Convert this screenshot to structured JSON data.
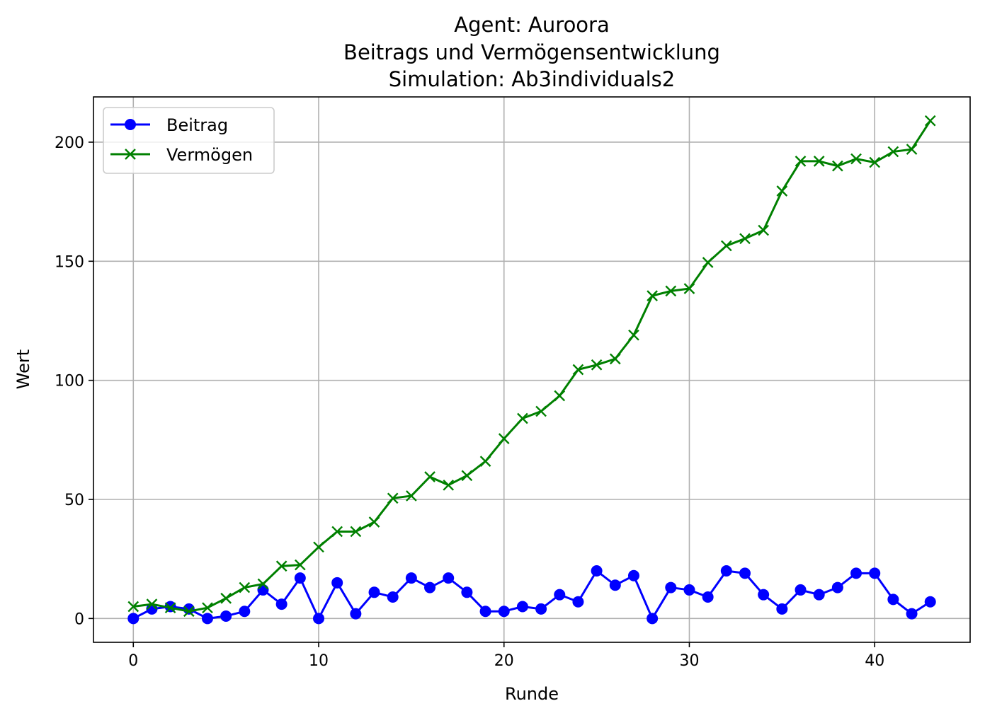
{
  "chart_data": {
    "type": "line",
    "title": [
      "Agent: Auroora",
      "Beitrags und Vermögensentwicklung",
      "Simulation: Ab3individuals2"
    ],
    "xlabel": "Runde",
    "ylabel": "Wert",
    "xlim": [
      -2.15,
      45.15
    ],
    "ylim": [
      -10,
      219
    ],
    "xticks": [
      0,
      10,
      20,
      30,
      40
    ],
    "yticks": [
      0,
      50,
      100,
      150,
      200
    ],
    "grid": true,
    "legend_position": "upper left",
    "x": [
      0,
      1,
      2,
      3,
      4,
      5,
      6,
      7,
      8,
      9,
      10,
      11,
      12,
      13,
      14,
      15,
      16,
      17,
      18,
      19,
      20,
      21,
      22,
      23,
      24,
      25,
      26,
      27,
      28,
      29,
      30,
      31,
      32,
      33,
      34,
      35,
      36,
      37,
      38,
      39,
      40,
      41,
      42,
      43
    ],
    "series": [
      {
        "name": "Beitrag",
        "color": "#0000ff",
        "marker": "circle",
        "values": [
          0,
          4,
          5,
          4,
          0,
          1,
          3,
          12,
          6,
          17,
          0,
          15,
          2,
          11,
          9,
          17,
          13,
          17,
          11,
          3,
          3,
          5,
          4,
          10,
          7,
          20,
          14,
          18,
          0,
          13,
          12,
          9,
          20,
          19,
          10,
          4,
          12,
          10,
          13,
          19,
          19,
          8,
          2,
          7
        ]
      },
      {
        "name": "Vermögen",
        "color": "#008000",
        "marker": "x",
        "values": [
          5,
          6,
          4.5,
          3,
          4.5,
          8.5,
          13,
          14.5,
          22,
          22.5,
          30,
          36.5,
          36.5,
          40.5,
          50.5,
          51.5,
          59.5,
          56,
          60,
          66,
          75.5,
          84,
          87,
          93.5,
          104.5,
          106.5,
          109,
          119,
          135.5,
          137.5,
          138.5,
          149.5,
          156.5,
          159.5,
          163,
          179.5,
          192,
          192,
          190,
          193,
          191.5,
          196,
          197,
          209
        ]
      }
    ]
  }
}
